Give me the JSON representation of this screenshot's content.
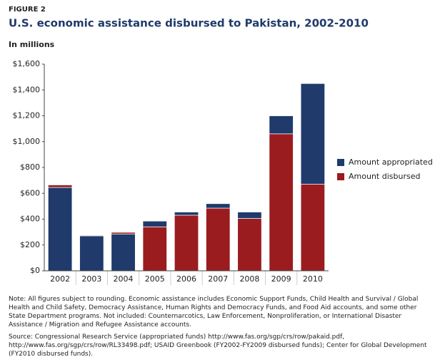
{
  "chart_data": {
    "type": "overlap-bar",
    "figure_label": "FIGURE 2",
    "title": "U.S. economic assistance disbursed to Pakistan, 2002-2010",
    "y_label": "In millions",
    "categories": [
      "2002",
      "2003",
      "2004",
      "2005",
      "2006",
      "2007",
      "2008",
      "2009",
      "2010"
    ],
    "series": [
      {
        "name": "Amount appropriated",
        "color": "#1f3a6b",
        "values": [
          645,
          270,
          285,
          385,
          455,
          520,
          455,
          1200,
          1450
        ]
      },
      {
        "name": "Amount disbursed",
        "color": "#9b1c1f",
        "values": [
          665,
          275,
          298,
          340,
          430,
          485,
          405,
          1060,
          670
        ]
      }
    ],
    "ylim": [
      0,
      1600
    ],
    "yticks": [
      {
        "value": 0,
        "label": "$0"
      },
      {
        "value": 200,
        "label": "$200"
      },
      {
        "value": 400,
        "label": "$400"
      },
      {
        "value": 600,
        "label": "$600"
      },
      {
        "value": 800,
        "label": "$800"
      },
      {
        "value": 1000,
        "label": "$1,000"
      },
      {
        "value": 1200,
        "label": "$1,200"
      },
      {
        "value": 1400,
        "label": "$1,400"
      },
      {
        "value": 1600,
        "label": "$1,600"
      }
    ],
    "legend": "right",
    "note": "Note: All figures subject to rounding. Economic assistance includes Economic Support Funds, Child Health and Survival / Global Health and Child Safety, Democracy Assistance, Human Rights and Democracy Funds, and Food Aid accounts, and some other State Department programs. Not included: Counternarcotics, Law Enforcement, Nonproliferation, or International Disaster Assistance / Migration and Refugee Assistance accounts.",
    "source": "Source: Congressional Research Service (appropriated funds) http://www.fas.org/sgp/crs/row/pakaid.pdf, http://www.fas.org/sgp/crs/row/RL33498.pdf; USAID Greenbook (FY2002-FY2009 disbursed funds); Center for Global Development (FY2010 disbursed funds)."
  }
}
